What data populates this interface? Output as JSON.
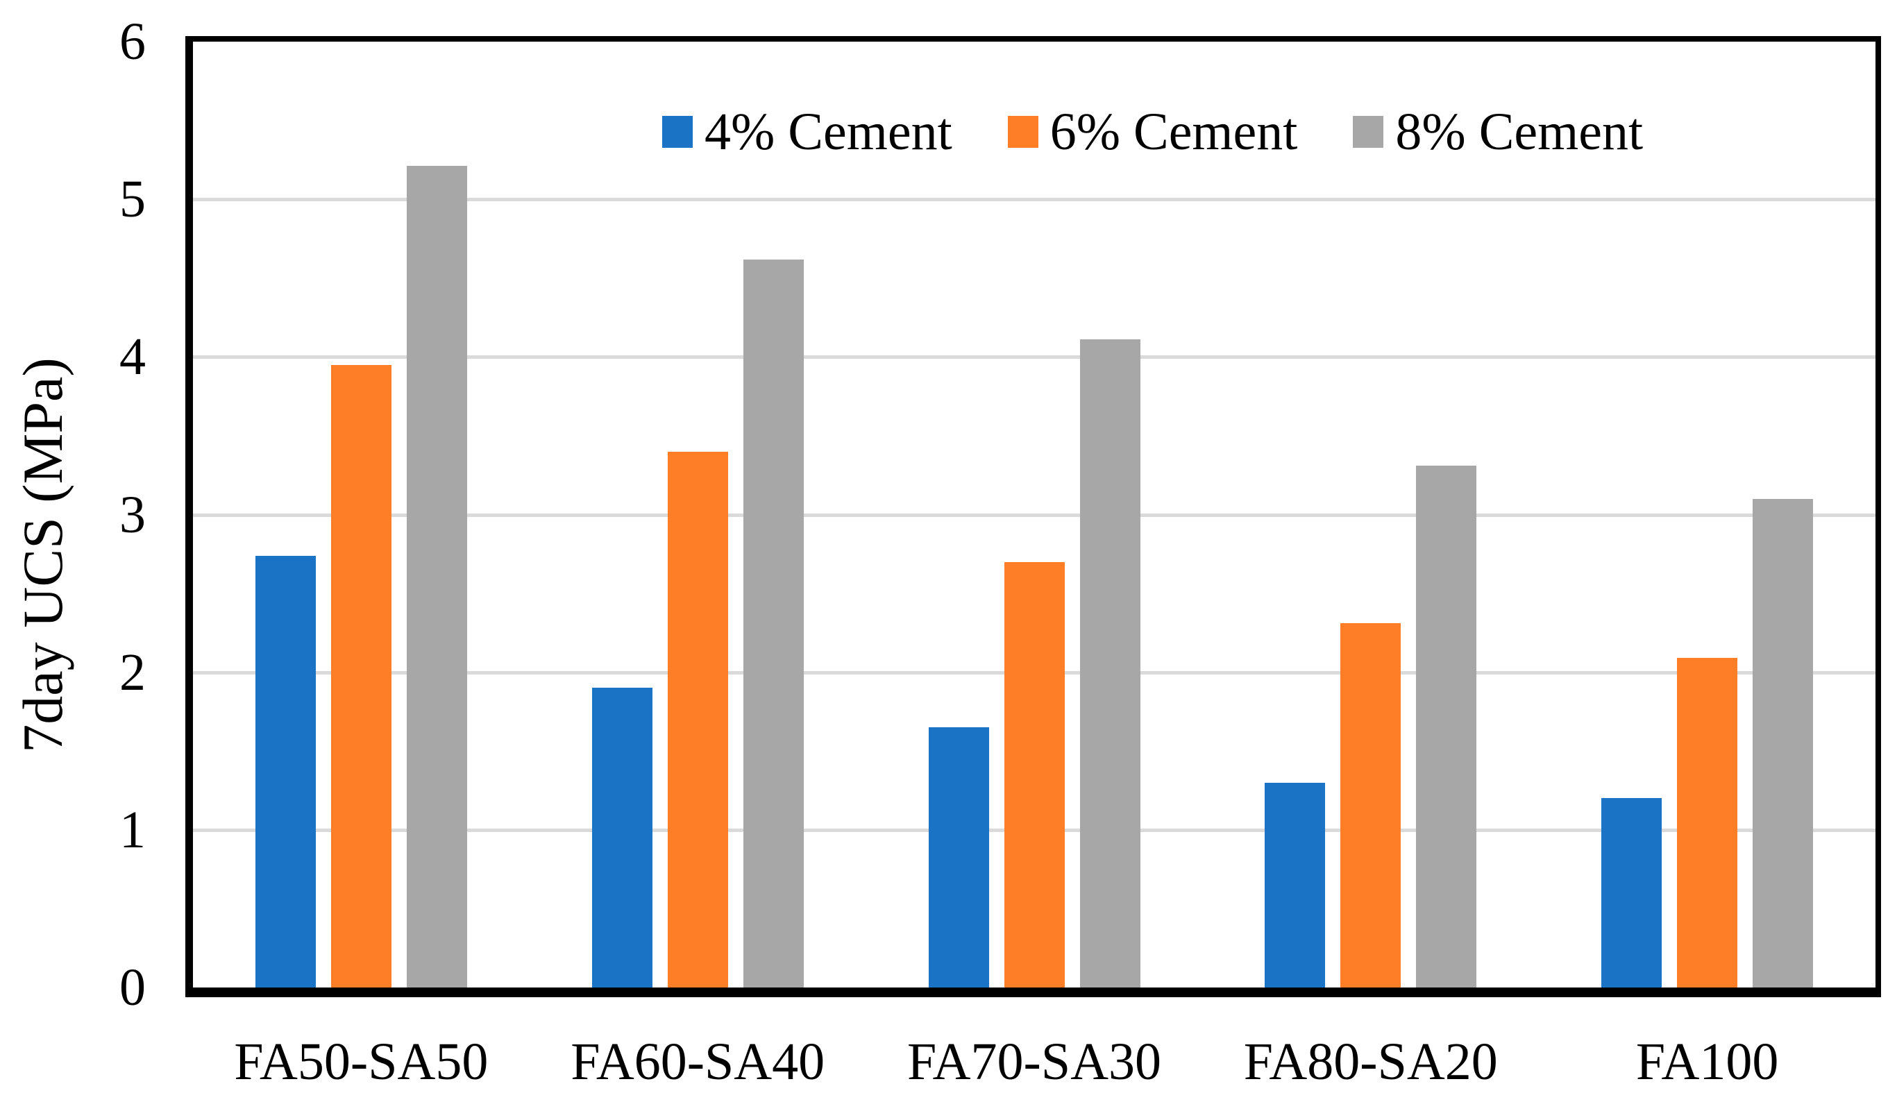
{
  "chart_data": {
    "type": "bar",
    "title": "",
    "categories": [
      "FA50-SA50",
      "FA60-SA40",
      "FA70-SA30",
      "FA80-SA20",
      "FA100"
    ],
    "series": [
      {
        "name": "4% Cement",
        "color": "#1B73C6",
        "values": [
          2.74,
          1.9,
          1.65,
          1.3,
          1.2
        ]
      },
      {
        "name": "6% Cement",
        "color": "#FD7E26",
        "values": [
          3.95,
          3.4,
          2.7,
          2.31,
          2.09
        ]
      },
      {
        "name": "8% Cement",
        "color": "#A7A7A7",
        "values": [
          5.21,
          4.62,
          4.11,
          3.31,
          3.1
        ]
      }
    ],
    "xlabel": "",
    "ylabel": "7day UCS (MPa)",
    "ylim": [
      0,
      6
    ],
    "yticks": [
      0,
      1,
      2,
      3,
      4,
      5,
      6
    ],
    "grid": "horizontal-major",
    "gridline_color": "#DADADA",
    "axis_color": "#000000",
    "background": "#FFFFFF",
    "legend": {
      "position": "top-inside",
      "labels": [
        "4% Cement",
        "6% Cement",
        "8% Cement"
      ]
    }
  }
}
